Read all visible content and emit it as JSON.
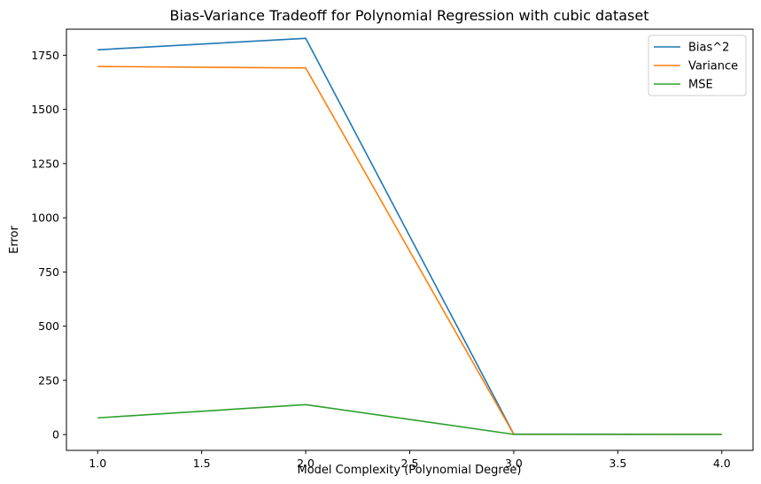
{
  "chart_data": {
    "type": "line",
    "title": "Bias-Variance Tradeoff for Polynomial Regression with cubic dataset",
    "xlabel": "Model Complexity (Polynomial Degree)",
    "ylabel": "Error",
    "x": [
      1.0,
      2.0,
      3.0,
      4.0
    ],
    "xlim": [
      0.85,
      4.15
    ],
    "ylim": [
      -73,
      1870
    ],
    "xticks": [
      1.0,
      1.5,
      2.0,
      2.5,
      3.0,
      3.5,
      4.0
    ],
    "xtick_labels": [
      "1.0",
      "1.5",
      "2.0",
      "2.5",
      "3.0",
      "3.5",
      "4.0"
    ],
    "yticks": [
      0,
      250,
      500,
      750,
      1000,
      1250,
      1500,
      1750
    ],
    "ytick_labels": [
      "0",
      "250",
      "500",
      "750",
      "1000",
      "1250",
      "1500",
      "1750"
    ],
    "grid": false,
    "legend_position": "top-right",
    "series": [
      {
        "name": "Bias^2",
        "color": "#1f77b4",
        "values": [
          1775,
          1828,
          2,
          1
        ]
      },
      {
        "name": "Variance",
        "color": "#ff7f0e",
        "values": [
          1698,
          1691,
          1,
          1
        ]
      },
      {
        "name": "MSE",
        "color": "#2ca02c",
        "values": [
          77,
          138,
          1,
          1
        ]
      }
    ]
  }
}
